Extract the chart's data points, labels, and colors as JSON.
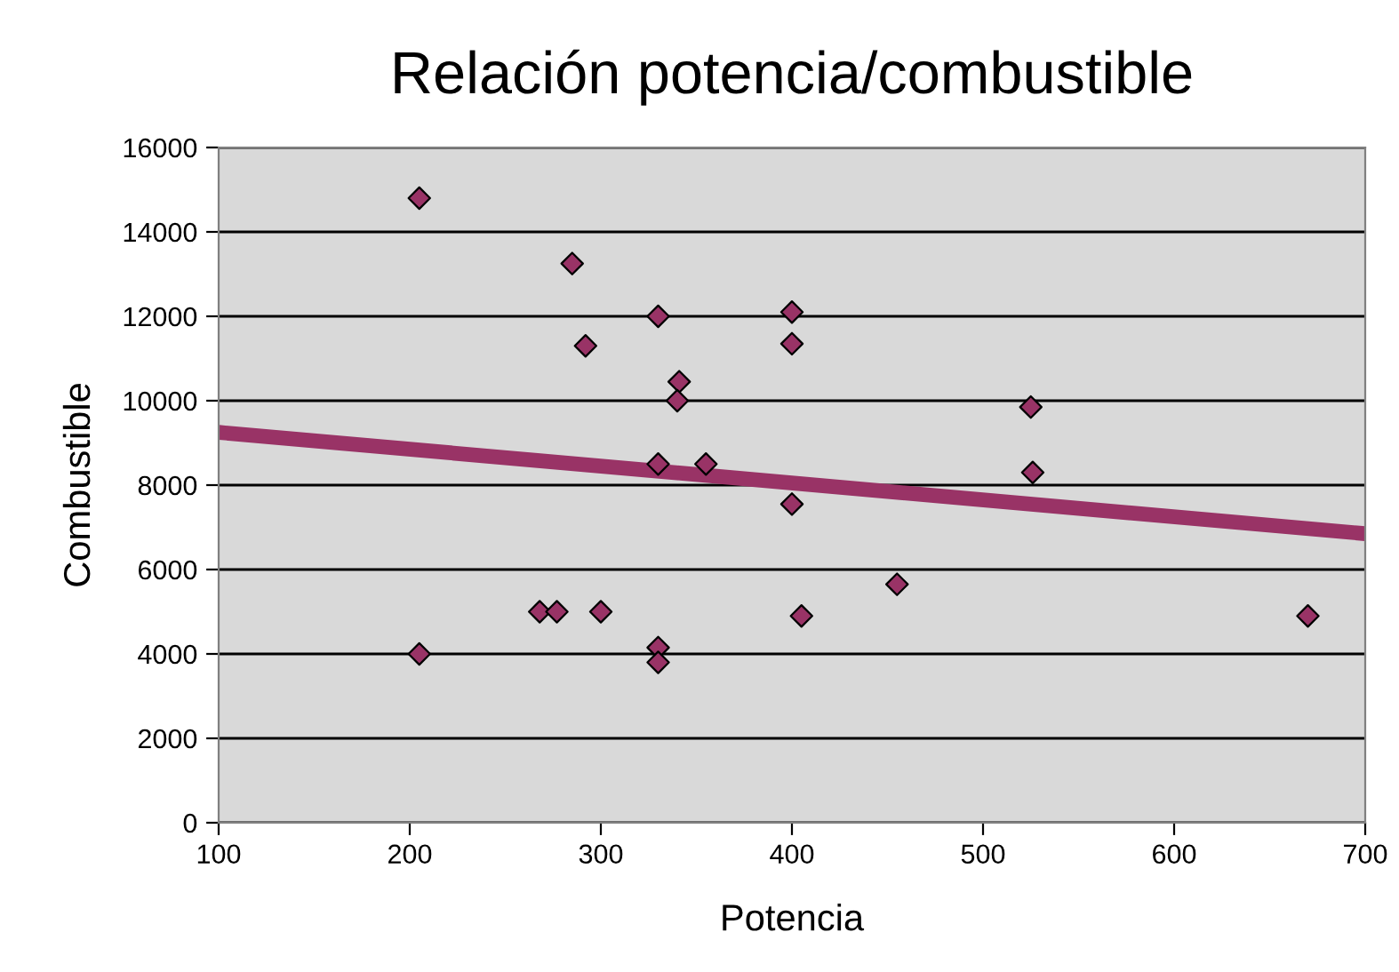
{
  "chart_data": {
    "type": "scatter",
    "title": "Relación potencia/combustible",
    "xlabel": "Potencia",
    "ylabel": "Combustible",
    "xlim": [
      100,
      700
    ],
    "xticks": [
      100,
      200,
      300,
      400,
      500,
      600,
      700
    ],
    "ylim": [
      0,
      16000
    ],
    "yticks": [
      0,
      2000,
      4000,
      6000,
      8000,
      10000,
      12000,
      14000,
      16000
    ],
    "grid": "y",
    "legend": false,
    "series": [
      {
        "marker": "diamond",
        "color": "#993366",
        "x": [
          205,
          285,
          292,
          330,
          341,
          340,
          330,
          355,
          400,
          400,
          400,
          525,
          526,
          268,
          277,
          300,
          330,
          330,
          205,
          405,
          455,
          670
        ],
        "values": [
          14800,
          13250,
          11300,
          12000,
          10450,
          10000,
          8500,
          8500,
          12100,
          11350,
          7550,
          9850,
          8300,
          5000,
          5000,
          5000,
          4150,
          3800,
          4000,
          4900,
          5650,
          4900
        ]
      },
      {
        "type": "line",
        "marker": "none",
        "color": "#993366",
        "x": [
          100,
          700
        ],
        "values": [
          9250,
          6850
        ]
      }
    ]
  }
}
